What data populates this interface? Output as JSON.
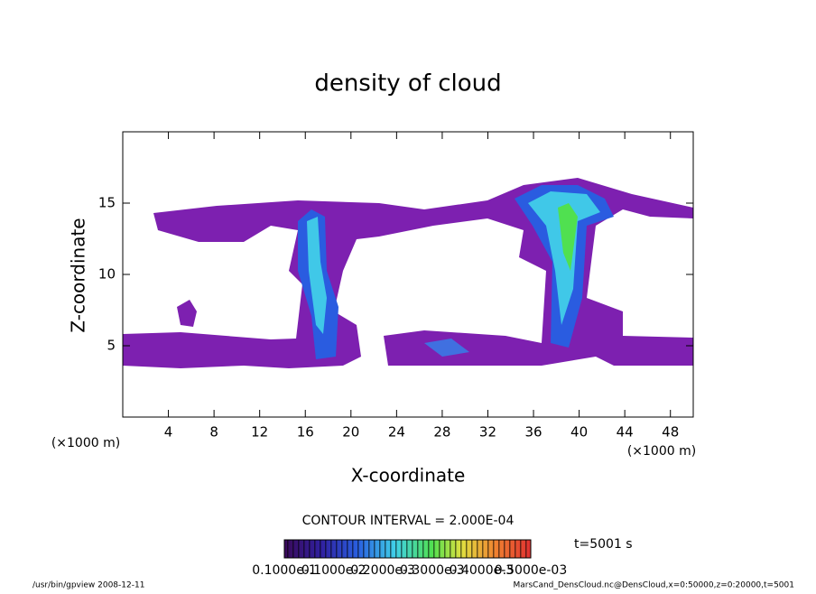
{
  "chart_data": {
    "type": "contour",
    "title": "density of cloud",
    "x_label": "X-coordinate",
    "y_label": "Z-coordinate",
    "x_unit": "(×1000 m)",
    "y_unit": "(×1000 m)",
    "xlim": [
      0,
      50
    ],
    "xticks": [
      4,
      8,
      12,
      16,
      20,
      24,
      28,
      32,
      36,
      40,
      44,
      48
    ],
    "ylim": [
      0,
      20
    ],
    "yticks": [
      5,
      10,
      15
    ],
    "contour_interval": "CONTOUR INTERVAL = 2.000E-04",
    "time": "t=5001 s",
    "colorbar_labels": [
      "0.1000e-1",
      "0.1000e-2",
      "0.2000e-3",
      "0.3000e-3",
      "0.4000e-3",
      "0.5000e-03"
    ],
    "footer_left": "/usr/bin/gpview   2008-12-11",
    "footer_right": "MarsCand_DensCloud.nc@DensCloud,x=0:50000,z=0:20000,t=5001"
  }
}
